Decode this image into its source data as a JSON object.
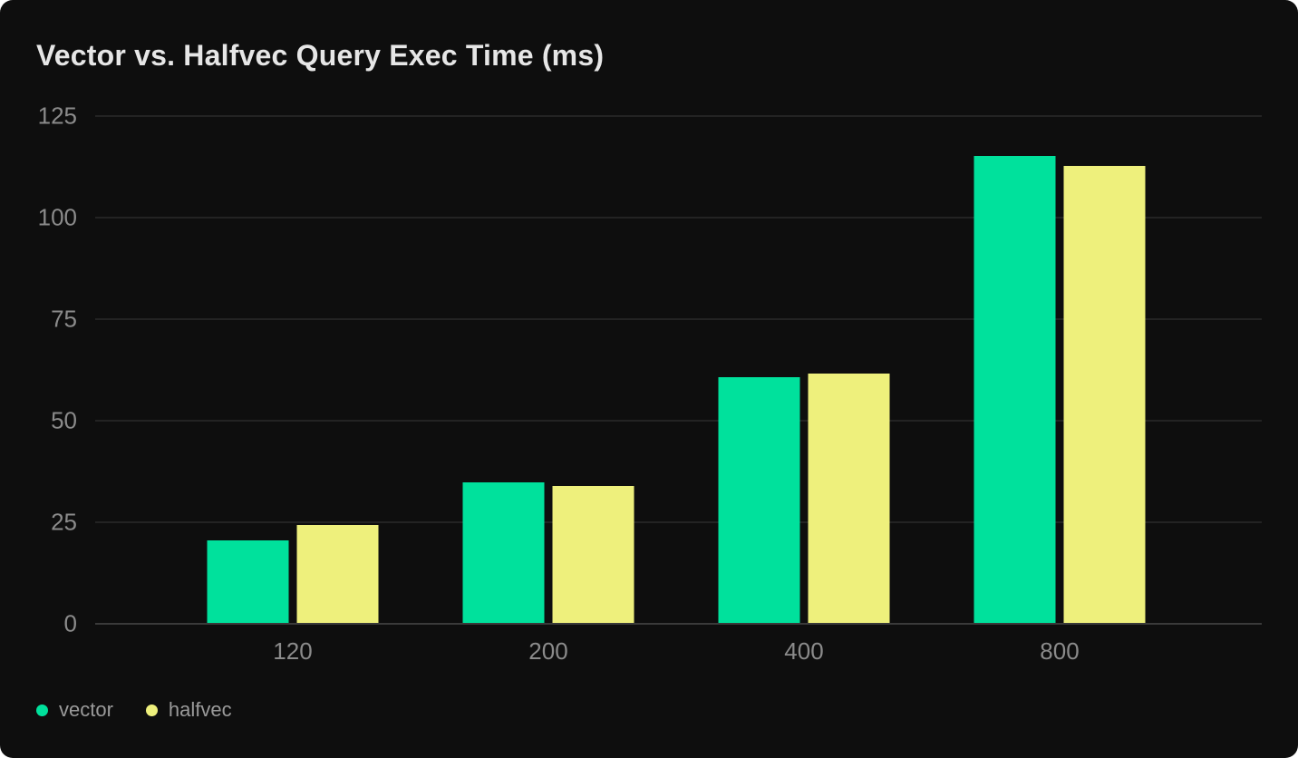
{
  "card": {
    "background": "#0e0e0e",
    "page_background": "#ffffff"
  },
  "chart_data": {
    "type": "bar",
    "title": "Vector vs. Halfvec Query Exec Time (ms)",
    "xlabel": "",
    "ylabel": "",
    "categories": [
      "120",
      "200",
      "400",
      "800"
    ],
    "series": [
      {
        "name": "vector",
        "color": "#00E19C",
        "values": [
          20.3,
          34.6,
          60.6,
          114.9
        ]
      },
      {
        "name": "halfvec",
        "color": "#EEF07C",
        "values": [
          24.0,
          33.7,
          61.4,
          112.5
        ]
      }
    ],
    "ylim": [
      0,
      125
    ],
    "yticks": [
      0,
      25,
      50,
      75,
      100,
      125
    ],
    "grid": true,
    "legend_position": "bottom-left",
    "colors": {
      "title_text": "#e6e6e6",
      "axis_text": "#8b8b8b",
      "legend_text": "#9a9a9a",
      "gridline": "#232323",
      "zero_line": "#3a3a3a"
    }
  }
}
